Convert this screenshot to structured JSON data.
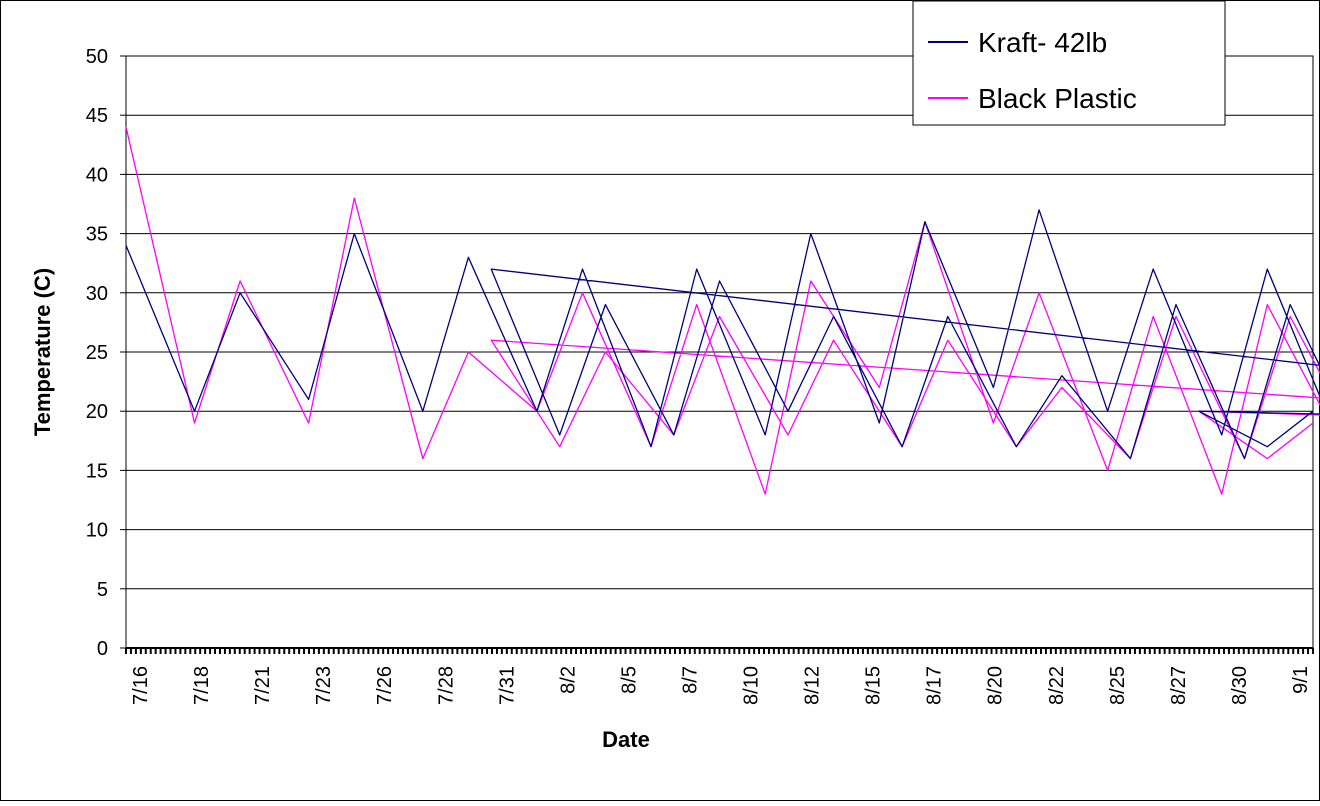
{
  "chart_data": {
    "type": "line",
    "title": "",
    "xlabel": "Date",
    "ylabel": "Temperature (C)",
    "ylim": [
      0,
      50
    ],
    "yticks": [
      0,
      5,
      10,
      15,
      20,
      25,
      30,
      35,
      40,
      45,
      50
    ],
    "y_tick_labels": [
      "0",
      "5",
      "10",
      "15",
      "20",
      "25",
      "30",
      "35",
      "40",
      "45",
      "50"
    ],
    "x_tick_labels": [
      "7/16",
      "7/18",
      "7/21",
      "7/23",
      "7/26",
      "7/28",
      "7/31",
      "8/2",
      "8/5",
      "8/7",
      "8/10",
      "8/12",
      "8/15",
      "8/17",
      "8/20",
      "8/22",
      "8/25",
      "8/27",
      "8/30",
      "9/1"
    ],
    "grid": "horizontal",
    "legend_position": "top-right",
    "colors": {
      "frame": "#000000",
      "grid": "#000000",
      "kraft": "#000080",
      "black_plastic": "#ff00ff"
    },
    "series": [
      {
        "name": "Kraft- 42lb",
        "color": "#000080",
        "x": [
          7.16,
          7.19,
          7.21,
          7.24,
          7.26,
          7.29,
          7.31,
          7.34,
          7.36,
          7.39,
          7.41,
          7.44,
          7.46,
          7.49,
          7.51,
          7.54,
          7.56,
          7.59,
          7.61,
          7.64,
          7.66,
          7.69,
          7.71,
          7.74,
          7.76,
          7.79,
          7.81,
          7.84,
          7.86,
          7.89,
          7.91,
          7.94,
          7.96,
          7.99,
          8.01,
          8.04,
          8.06,
          8.09,
          8.11,
          8.14,
          8.16,
          8.19,
          8.21,
          8.24,
          8.26,
          8.29,
          8.31,
          8.34,
          8.36,
          8.39,
          8.41,
          8.44,
          8.46,
          8.49,
          8.51,
          8.54,
          8.56,
          8.59,
          8.61,
          8.64,
          8.66,
          8.69,
          8.71,
          8.74,
          8.76,
          8.79,
          8.81,
          8.84,
          8.86,
          8.89,
          8.91,
          8.94,
          8.96,
          8.99,
          9.01,
          9.04,
          9.06
        ],
        "values": [
          34,
          20,
          30,
          21,
          35,
          20,
          33,
          20,
          32,
          17,
          32,
          18,
          35,
          19,
          36,
          22,
          37,
          20,
          32,
          18,
          32,
          18,
          31,
          17,
          31,
          18,
          33,
          19,
          33,
          19,
          29,
          17,
          32,
          17,
          32,
          18,
          29,
          18,
          31,
          20,
          28,
          17,
          28,
          17,
          23,
          16,
          29,
          16,
          29,
          17,
          30,
          19,
          32,
          19,
          32,
          18,
          31,
          19,
          31,
          19,
          30,
          19,
          30,
          20,
          29,
          19,
          28,
          19,
          28,
          19,
          27,
          19,
          22,
          17,
          20,
          17,
          20
        ]
      },
      {
        "name": "Black Plastic",
        "color": "#ff00ff",
        "x": [
          7.16,
          7.19,
          7.21,
          7.24,
          7.26,
          7.29,
          7.31,
          7.34,
          7.36,
          7.39,
          7.41,
          7.44,
          7.46,
          7.49,
          7.51,
          7.54,
          7.56,
          7.59,
          7.61,
          7.64,
          7.66,
          7.69,
          7.71,
          7.74,
          7.76,
          7.79,
          7.81,
          7.84,
          7.86,
          7.89,
          7.91,
          7.94,
          7.96,
          7.99,
          8.01,
          8.04,
          8.06,
          8.09,
          8.11,
          8.14,
          8.16,
          8.19,
          8.21,
          8.24,
          8.26,
          8.29,
          8.31,
          8.34,
          8.36,
          8.39,
          8.41,
          8.44,
          8.46,
          8.49,
          8.51,
          8.54,
          8.56,
          8.59,
          8.61,
          8.64,
          8.66,
          8.69,
          8.71,
          8.74,
          8.76,
          8.79,
          8.81,
          8.84,
          8.86,
          8.89,
          8.91,
          8.94,
          8.96,
          8.99,
          9.01,
          9.04,
          9.06
        ],
        "values": [
          44,
          19,
          31,
          19,
          38,
          16,
          25,
          20,
          30,
          17,
          29,
          13,
          31,
          22,
          36,
          19,
          30,
          15,
          28,
          13,
          29,
          18,
          25,
          15,
          28,
          15,
          26,
          18,
          26,
          18,
          25,
          17,
          27,
          17,
          26,
          17,
          25,
          18,
          28,
          18,
          26,
          17,
          26,
          17,
          22,
          16,
          28,
          16,
          28,
          17,
          29,
          19,
          30,
          19,
          29,
          18,
          29,
          18,
          29,
          18,
          28,
          18,
          28,
          19,
          27,
          18,
          27,
          18,
          27,
          19,
          26,
          18,
          21,
          16,
          20,
          16,
          19
        ]
      }
    ]
  }
}
